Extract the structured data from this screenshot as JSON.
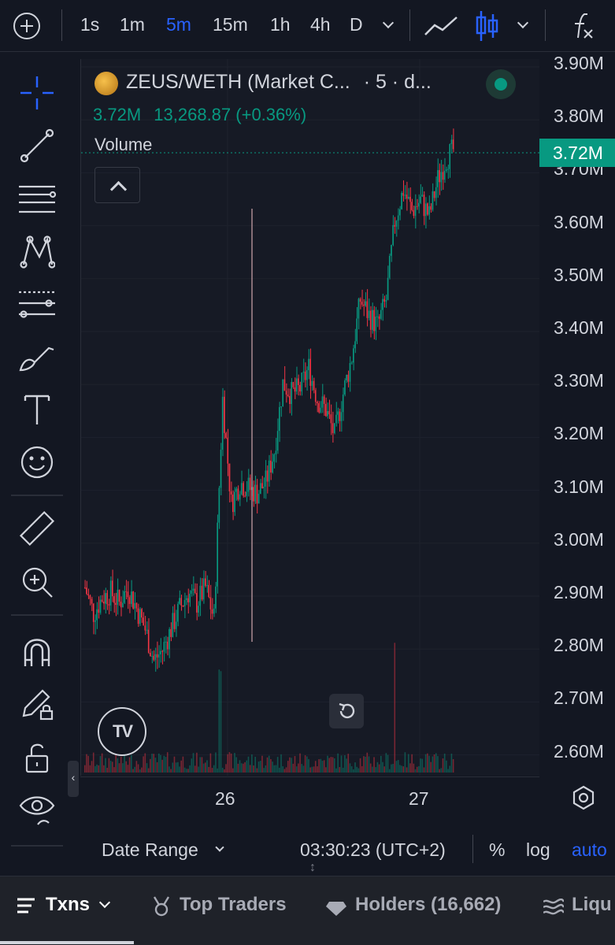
{
  "toolbar": {
    "timeframes": [
      "1s",
      "1m",
      "5m",
      "15m",
      "1h",
      "4h",
      "D"
    ],
    "active_timeframe": "5m"
  },
  "legend": {
    "symbol": "ZEUS/WETH (Market C...",
    "interval": "· 5 · d...",
    "value": "3.72M",
    "change": "13,268.87 (+0.36%)",
    "volume_label": "Volume"
  },
  "price_axis": {
    "ticks": [
      "3.90M",
      "3.80M",
      "3.70M",
      "3.60M",
      "3.50M",
      "3.40M",
      "3.30M",
      "3.20M",
      "3.10M",
      "3.00M",
      "2.90M",
      "2.80M",
      "2.70M",
      "2.60M"
    ],
    "current_price": "3.72M"
  },
  "time_axis": {
    "labels": [
      "26",
      "27"
    ]
  },
  "bottom": {
    "date_range": "Date Range",
    "clock": "03:30:23 (UTC+2)",
    "percent": "%",
    "log": "log",
    "auto": "auto"
  },
  "tabs": {
    "txns": "Txns",
    "top_traders": "Top Traders",
    "holders": "Holders (16,662)",
    "liquidity": "Liqu"
  },
  "logo_text": "TV",
  "colors": {
    "up": "#089981",
    "down": "#f23645",
    "accent": "#2962ff",
    "background": "#131722"
  },
  "chart_data": {
    "type": "candlestick",
    "ylim": [
      2.55,
      3.92
    ],
    "y_unit": "M",
    "x_labels": [
      "26",
      "27"
    ],
    "series": [
      {
        "x": 0,
        "y": 2.88
      },
      {
        "x": 1,
        "y": 2.83
      },
      {
        "x": 2,
        "y": 2.86
      },
      {
        "x": 3,
        "y": 2.87
      },
      {
        "x": 4,
        "y": 2.85
      },
      {
        "x": 5,
        "y": 2.88
      },
      {
        "x": 6,
        "y": 2.84
      },
      {
        "x": 7,
        "y": 2.8
      },
      {
        "x": 8,
        "y": 2.74
      },
      {
        "x": 9,
        "y": 2.76
      },
      {
        "x": 10,
        "y": 2.8
      },
      {
        "x": 11,
        "y": 2.84
      },
      {
        "x": 12,
        "y": 2.87
      },
      {
        "x": 13,
        "y": 2.85
      },
      {
        "x": 14,
        "y": 2.88
      },
      {
        "x": 15,
        "y": 2.82
      },
      {
        "x": 16,
        "y": 3.24
      },
      {
        "x": 17,
        "y": 3.04
      },
      {
        "x": 18,
        "y": 3.08
      },
      {
        "x": 19,
        "y": 3.07
      },
      {
        "x": 20,
        "y": 3.06
      },
      {
        "x": 21,
        "y": 3.08
      },
      {
        "x": 22,
        "y": 3.14
      },
      {
        "x": 23,
        "y": 3.27
      },
      {
        "x": 24,
        "y": 3.25
      },
      {
        "x": 25,
        "y": 3.26
      },
      {
        "x": 26,
        "y": 3.3
      },
      {
        "x": 27,
        "y": 3.24
      },
      {
        "x": 28,
        "y": 3.22
      },
      {
        "x": 29,
        "y": 3.17
      },
      {
        "x": 30,
        "y": 3.25
      },
      {
        "x": 31,
        "y": 3.32
      },
      {
        "x": 32,
        "y": 3.43
      },
      {
        "x": 33,
        "y": 3.4
      },
      {
        "x": 34,
        "y": 3.38
      },
      {
        "x": 35,
        "y": 3.43
      },
      {
        "x": 36,
        "y": 3.58
      },
      {
        "x": 37,
        "y": 3.64
      },
      {
        "x": 38,
        "y": 3.6
      },
      {
        "x": 39,
        "y": 3.62
      },
      {
        "x": 40,
        "y": 3.59
      },
      {
        "x": 41,
        "y": 3.66
      },
      {
        "x": 42,
        "y": 3.7
      },
      {
        "x": 43,
        "y": 3.72
      }
    ]
  }
}
